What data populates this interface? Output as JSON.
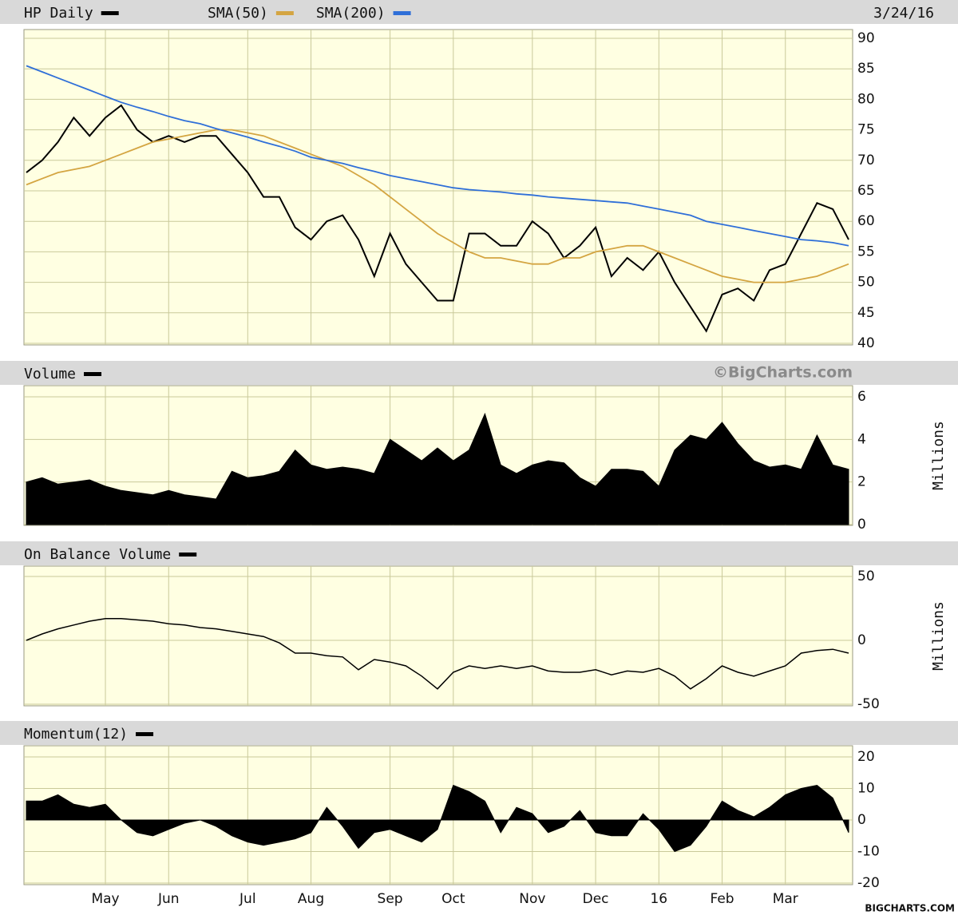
{
  "chart_data": [
    {
      "type": "line",
      "title": "HP Daily",
      "date": "3/24/16",
      "series": [
        {
          "name": "HP Daily",
          "color": "#000000",
          "values": [
            68,
            70,
            73,
            77,
            74,
            77,
            79,
            75,
            73,
            74,
            73,
            74,
            74,
            71,
            68,
            64,
            64,
            59,
            57,
            60,
            61,
            57,
            51,
            58,
            53,
            50,
            47,
            47,
            58,
            58,
            56,
            56,
            60,
            58,
            54,
            56,
            59,
            51,
            54,
            52,
            55,
            50,
            46,
            42,
            48,
            49,
            47,
            52,
            53,
            58,
            63,
            62,
            57
          ]
        },
        {
          "name": "SMA(50)",
          "color": "#d4a542",
          "values": [
            66,
            67,
            68,
            68.5,
            69,
            70,
            71,
            72,
            73,
            73.5,
            74,
            74.5,
            75,
            75,
            74.5,
            74,
            73,
            72,
            71,
            70,
            69,
            67.5,
            66,
            64,
            62,
            60,
            58,
            56.5,
            55,
            54,
            54,
            53.5,
            53,
            53,
            54,
            54,
            55,
            55.5,
            56,
            56,
            55,
            54,
            53,
            52,
            51,
            50.5,
            50,
            50,
            50,
            50.5,
            51,
            52,
            53
          ]
        },
        {
          "name": "SMA(200)",
          "color": "#2f6fd8",
          "values": [
            85.5,
            84.5,
            83.5,
            82.5,
            81.5,
            80.5,
            79.5,
            78.7,
            78,
            77.2,
            76.5,
            76,
            75.2,
            74.5,
            73.8,
            73,
            72.3,
            71.5,
            70.5,
            70,
            69.5,
            68.8,
            68.2,
            67.5,
            67,
            66.5,
            66,
            65.5,
            65.2,
            65,
            64.8,
            64.5,
            64.3,
            64,
            63.8,
            63.6,
            63.4,
            63.2,
            63,
            62.5,
            62,
            61.5,
            61,
            60,
            59.5,
            59,
            58.5,
            58,
            57.5,
            57,
            56.8,
            56.5,
            56
          ]
        }
      ],
      "ylim": [
        40,
        90
      ],
      "yticks": [
        40,
        45,
        50,
        55,
        60,
        65,
        70,
        75,
        80,
        85,
        90
      ],
      "grid": true
    },
    {
      "type": "area",
      "title": "Volume",
      "watermark": "©BigCharts.com",
      "y_label": "Millions",
      "color": "#000000",
      "values": [
        2,
        2.2,
        1.9,
        2,
        2.1,
        1.8,
        1.6,
        1.5,
        1.4,
        1.6,
        1.4,
        1.3,
        1.2,
        2.5,
        2.2,
        2.3,
        2.5,
        3.5,
        2.8,
        2.6,
        2.7,
        2.6,
        2.4,
        4,
        3.5,
        3,
        3.6,
        3,
        3.5,
        5.2,
        2.8,
        2.4,
        2.8,
        3,
        2.9,
        2.2,
        1.8,
        2.6,
        2.6,
        2.5,
        1.8,
        3.5,
        4.2,
        4,
        4.8,
        3.8,
        3,
        2.7,
        2.8,
        2.6,
        4.2,
        2.8,
        2.6
      ],
      "ylim": [
        0,
        6
      ],
      "yticks": [
        0,
        2,
        4,
        6
      ],
      "grid": true
    },
    {
      "type": "line",
      "title": "On Balance Volume",
      "y_label": "Millions",
      "color": "#000000",
      "values": [
        0,
        5,
        9,
        12,
        15,
        17,
        17,
        16,
        15,
        13,
        12,
        10,
        9,
        7,
        5,
        3,
        -2,
        -10,
        -10,
        -12,
        -13,
        -23,
        -15,
        -17,
        -20,
        -28,
        -38,
        -25,
        -20,
        -22,
        -20,
        -22,
        -20,
        -24,
        -25,
        -25,
        -23,
        -27,
        -24,
        -25,
        -22,
        -28,
        -38,
        -30,
        -20,
        -25,
        -28,
        -24,
        -20,
        -10,
        -8,
        -7,
        -10
      ],
      "ylim": [
        -50,
        50
      ],
      "yticks": [
        -50,
        0,
        50
      ],
      "grid": true
    },
    {
      "type": "area",
      "title": "Momentum(12)",
      "color": "#000000",
      "credit": "BIGCHARTS.COM",
      "categories": [
        null,
        null,
        null,
        null,
        null,
        "May",
        null,
        null,
        null,
        "Jun",
        null,
        null,
        null,
        null,
        "Jul",
        null,
        null,
        null,
        "Aug",
        null,
        null,
        null,
        null,
        "Sep",
        null,
        null,
        null,
        "Oct",
        null,
        null,
        null,
        null,
        "Nov",
        null,
        null,
        null,
        "Dec",
        null,
        null,
        null,
        "16",
        null,
        null,
        null,
        "Feb",
        null,
        null,
        null,
        "Mar",
        null,
        null,
        null,
        null
      ],
      "values": [
        6,
        6,
        8,
        5,
        4,
        5,
        0,
        -4,
        -5,
        -3,
        -1,
        0,
        -2,
        -5,
        -7,
        -8,
        -7,
        -6,
        -4,
        4,
        -2,
        -9,
        -4,
        -3,
        -5,
        -7,
        -3,
        11,
        9,
        6,
        -4,
        4,
        2,
        -4,
        -2,
        3,
        -4,
        -5,
        -5,
        2,
        -3,
        -10,
        -8,
        -2,
        6,
        3,
        1,
        4,
        8,
        10,
        11,
        7,
        -4
      ],
      "ylim": [
        -20,
        20
      ],
      "yticks": [
        -20,
        -10,
        0,
        10,
        20
      ],
      "grid": true
    }
  ]
}
